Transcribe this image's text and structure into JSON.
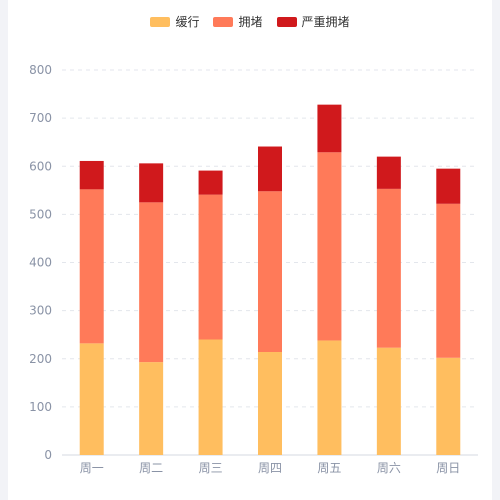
{
  "chart_data": {
    "type": "bar",
    "stacked": true,
    "categories": [
      "周一",
      "周二",
      "周三",
      "周四",
      "周五",
      "周六",
      "周日"
    ],
    "series": [
      {
        "name": "缓行",
        "color": "#ffbe5f",
        "values": [
          232,
          193,
          240,
          214,
          238,
          223,
          202
        ]
      },
      {
        "name": "拥堵",
        "color": "#ff7a59",
        "values": [
          320,
          332,
          301,
          334,
          391,
          330,
          320
        ]
      },
      {
        "name": "严重拥堵",
        "color": "#d0191c",
        "values": [
          59,
          81,
          50,
          93,
          99,
          67,
          73
        ]
      }
    ],
    "ylim": [
      0,
      800
    ],
    "yticks": [
      0,
      100,
      200,
      300,
      400,
      500,
      600,
      700,
      800
    ],
    "grid": true,
    "legend_position": "top-center"
  }
}
